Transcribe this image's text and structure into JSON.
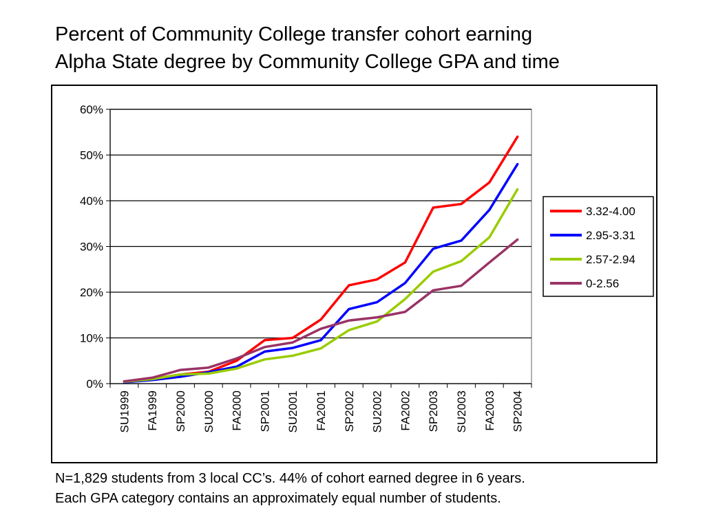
{
  "title": {
    "line1": "Percent of Community College transfer cohort earning",
    "line2": "Alpha State degree by Community College GPA and time"
  },
  "caption": {
    "line1": "N=1,829 students from 3 local CC’s.  44% of cohort earned degree in 6 years.",
    "line2": "Each GPA category contains an approximately equal number of students."
  },
  "chart_data": {
    "type": "line",
    "x": [
      "SU1999",
      "FA1999",
      "SP2000",
      "SU2000",
      "FA2000",
      "SP2001",
      "SU2001",
      "FA2001",
      "SP2002",
      "SU2002",
      "FA2002",
      "SP2003",
      "SU2003",
      "FA2003",
      "SP2004"
    ],
    "ylim": [
      0,
      60
    ],
    "yticks": [
      "0%",
      "10%",
      "20%",
      "30%",
      "40%",
      "50%",
      "60%"
    ],
    "grid": true,
    "legend_position": "right",
    "series": [
      {
        "name": "3.32-4.00",
        "color": "#ff0000",
        "values": [
          0.5,
          1.0,
          2.0,
          2.6,
          5.0,
          9.5,
          10.0,
          14.0,
          21.5,
          22.8,
          26.5,
          38.5,
          39.3,
          44.0,
          54.0
        ]
      },
      {
        "name": "2.95-3.31",
        "color": "#0000ff",
        "values": [
          0.3,
          0.8,
          1.5,
          2.5,
          3.7,
          7.0,
          7.8,
          9.5,
          16.3,
          17.8,
          22.0,
          29.5,
          31.3,
          38.0,
          48.0
        ]
      },
      {
        "name": "2.57-2.94",
        "color": "#99cc00",
        "values": [
          0.4,
          1.0,
          2.0,
          2.2,
          3.3,
          5.3,
          6.1,
          7.7,
          11.7,
          13.6,
          18.5,
          24.5,
          26.8,
          32.0,
          42.5
        ]
      },
      {
        "name": "0-2.56",
        "color": "#993366",
        "values": [
          0.5,
          1.3,
          3.0,
          3.5,
          5.5,
          8.0,
          9.0,
          12.0,
          13.8,
          14.5,
          15.7,
          20.4,
          21.4,
          26.5,
          31.5
        ]
      }
    ]
  }
}
